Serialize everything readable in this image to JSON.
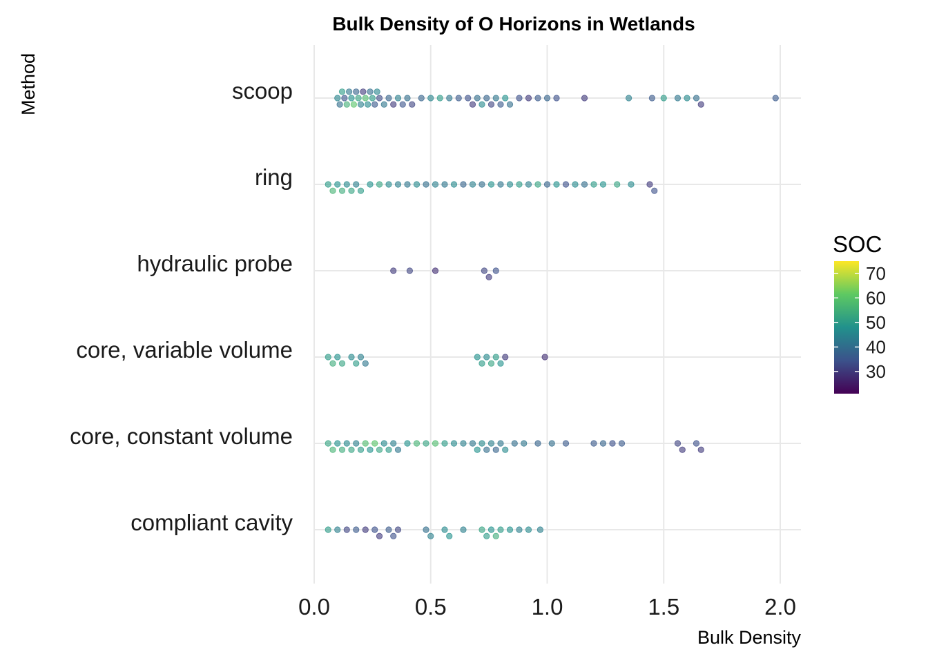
{
  "chart_data": {
    "type": "scatter",
    "title": "Bulk Density of O Horizons in Wetlands",
    "xlabel": "Bulk Density",
    "ylabel": "Method",
    "xlim": [
      0,
      2.08
    ],
    "x_ticks": [
      "0.0",
      "0.5",
      "1.0",
      "1.5",
      "2.0"
    ],
    "grid": true,
    "legend": {
      "title": "SOC",
      "position": "right",
      "range": [
        21,
        75
      ],
      "ticks": [
        "70",
        "60",
        "50",
        "40",
        "30"
      ],
      "colors": [
        "#440154",
        "#3b528b",
        "#21918c",
        "#5ec962",
        "#fde725"
      ]
    },
    "categories": [
      "compliant cavity",
      "core, constant volume",
      "core, variable volume",
      "hydraulic probe",
      "ring",
      "scoop"
    ],
    "series": [
      {
        "category": "scoop",
        "points": [
          [
            0.1,
            45
          ],
          [
            0.11,
            40
          ],
          [
            0.12,
            50
          ],
          [
            0.13,
            35
          ],
          [
            0.14,
            55
          ],
          [
            0.15,
            42
          ],
          [
            0.16,
            48
          ],
          [
            0.17,
            60
          ],
          [
            0.18,
            38
          ],
          [
            0.19,
            52
          ],
          [
            0.2,
            44
          ],
          [
            0.21,
            30
          ],
          [
            0.22,
            58
          ],
          [
            0.23,
            46
          ],
          [
            0.24,
            40
          ],
          [
            0.25,
            50
          ],
          [
            0.26,
            36
          ],
          [
            0.27,
            45
          ],
          [
            0.28,
            33
          ],
          [
            0.3,
            42
          ],
          [
            0.32,
            38
          ],
          [
            0.34,
            30
          ],
          [
            0.36,
            44
          ],
          [
            0.38,
            35
          ],
          [
            0.4,
            40
          ],
          [
            0.42,
            32
          ],
          [
            0.46,
            38
          ],
          [
            0.5,
            45
          ],
          [
            0.54,
            50
          ],
          [
            0.58,
            42
          ],
          [
            0.62,
            36
          ],
          [
            0.66,
            34
          ],
          [
            0.68,
            30
          ],
          [
            0.7,
            40
          ],
          [
            0.72,
            46
          ],
          [
            0.74,
            38
          ],
          [
            0.76,
            32
          ],
          [
            0.78,
            42
          ],
          [
            0.8,
            36
          ],
          [
            0.82,
            48
          ],
          [
            0.84,
            40
          ],
          [
            0.88,
            34
          ],
          [
            0.92,
            30
          ],
          [
            0.96,
            36
          ],
          [
            1.0,
            38
          ],
          [
            1.04,
            34
          ],
          [
            1.16,
            30
          ],
          [
            1.35,
            44
          ],
          [
            1.45,
            36
          ],
          [
            1.5,
            50
          ],
          [
            1.56,
            42
          ],
          [
            1.6,
            46
          ],
          [
            1.64,
            40
          ],
          [
            1.66,
            30
          ],
          [
            1.98,
            36
          ]
        ]
      },
      {
        "category": "ring",
        "points": [
          [
            0.06,
            50
          ],
          [
            0.08,
            56
          ],
          [
            0.1,
            48
          ],
          [
            0.12,
            54
          ],
          [
            0.14,
            46
          ],
          [
            0.16,
            52
          ],
          [
            0.18,
            44
          ],
          [
            0.2,
            50
          ],
          [
            0.24,
            48
          ],
          [
            0.28,
            52
          ],
          [
            0.32,
            46
          ],
          [
            0.36,
            44
          ],
          [
            0.4,
            42
          ],
          [
            0.44,
            46
          ],
          [
            0.48,
            40
          ],
          [
            0.52,
            44
          ],
          [
            0.56,
            42
          ],
          [
            0.6,
            46
          ],
          [
            0.64,
            38
          ],
          [
            0.68,
            44
          ],
          [
            0.72,
            40
          ],
          [
            0.76,
            48
          ],
          [
            0.8,
            42
          ],
          [
            0.84,
            46
          ],
          [
            0.88,
            50
          ],
          [
            0.92,
            44
          ],
          [
            0.96,
            52
          ],
          [
            1.0,
            38
          ],
          [
            1.04,
            48
          ],
          [
            1.08,
            34
          ],
          [
            1.12,
            46
          ],
          [
            1.16,
            40
          ],
          [
            1.2,
            50
          ],
          [
            1.24,
            48
          ],
          [
            1.3,
            52
          ],
          [
            1.36,
            46
          ],
          [
            1.44,
            30
          ],
          [
            1.46,
            34
          ]
        ]
      },
      {
        "category": "hydraulic probe",
        "points": [
          [
            0.34,
            30
          ],
          [
            0.41,
            32
          ],
          [
            0.52,
            28
          ],
          [
            0.73,
            32
          ],
          [
            0.75,
            30
          ],
          [
            0.78,
            34
          ]
        ]
      },
      {
        "category": "core, variable volume",
        "points": [
          [
            0.06,
            50
          ],
          [
            0.08,
            54
          ],
          [
            0.1,
            48
          ],
          [
            0.12,
            52
          ],
          [
            0.16,
            46
          ],
          [
            0.18,
            50
          ],
          [
            0.2,
            44
          ],
          [
            0.22,
            42
          ],
          [
            0.7,
            48
          ],
          [
            0.72,
            50
          ],
          [
            0.74,
            46
          ],
          [
            0.76,
            52
          ],
          [
            0.78,
            50
          ],
          [
            0.8,
            48
          ],
          [
            0.82,
            30
          ],
          [
            0.99,
            28
          ]
        ]
      },
      {
        "category": "core, constant volume",
        "points": [
          [
            0.06,
            52
          ],
          [
            0.08,
            56
          ],
          [
            0.1,
            48
          ],
          [
            0.12,
            54
          ],
          [
            0.14,
            46
          ],
          [
            0.16,
            52
          ],
          [
            0.18,
            44
          ],
          [
            0.2,
            50
          ],
          [
            0.22,
            58
          ],
          [
            0.24,
            48
          ],
          [
            0.26,
            60
          ],
          [
            0.28,
            52
          ],
          [
            0.3,
            46
          ],
          [
            0.32,
            50
          ],
          [
            0.34,
            44
          ],
          [
            0.36,
            42
          ],
          [
            0.4,
            48
          ],
          [
            0.44,
            56
          ],
          [
            0.48,
            52
          ],
          [
            0.52,
            58
          ],
          [
            0.56,
            50
          ],
          [
            0.6,
            46
          ],
          [
            0.64,
            44
          ],
          [
            0.68,
            42
          ],
          [
            0.7,
            48
          ],
          [
            0.72,
            46
          ],
          [
            0.74,
            40
          ],
          [
            0.76,
            44
          ],
          [
            0.78,
            38
          ],
          [
            0.8,
            42
          ],
          [
            0.82,
            46
          ],
          [
            0.86,
            40
          ],
          [
            0.9,
            42
          ],
          [
            0.96,
            38
          ],
          [
            1.02,
            40
          ],
          [
            1.08,
            36
          ],
          [
            1.2,
            36
          ],
          [
            1.24,
            38
          ],
          [
            1.28,
            34
          ],
          [
            1.32,
            36
          ],
          [
            1.56,
            32
          ],
          [
            1.58,
            30
          ],
          [
            1.64,
            34
          ],
          [
            1.66,
            30
          ]
        ]
      },
      {
        "category": "compliant cavity",
        "points": [
          [
            0.06,
            50
          ],
          [
            0.1,
            44
          ],
          [
            0.14,
            32
          ],
          [
            0.18,
            36
          ],
          [
            0.22,
            30
          ],
          [
            0.26,
            34
          ],
          [
            0.28,
            30
          ],
          [
            0.32,
            36
          ],
          [
            0.34,
            34
          ],
          [
            0.36,
            32
          ],
          [
            0.48,
            40
          ],
          [
            0.5,
            44
          ],
          [
            0.56,
            46
          ],
          [
            0.58,
            48
          ],
          [
            0.64,
            44
          ],
          [
            0.72,
            52
          ],
          [
            0.74,
            50
          ],
          [
            0.76,
            48
          ],
          [
            0.78,
            54
          ],
          [
            0.8,
            50
          ],
          [
            0.84,
            48
          ],
          [
            0.88,
            44
          ],
          [
            0.92,
            46
          ],
          [
            0.97,
            44
          ]
        ]
      }
    ]
  }
}
